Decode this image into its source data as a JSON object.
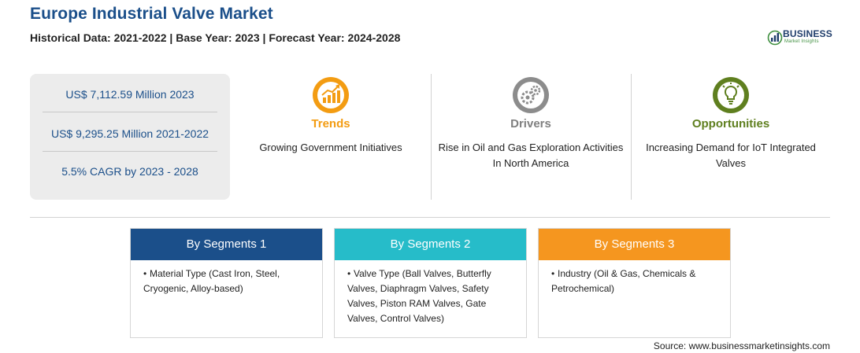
{
  "header": {
    "title": "Europe Industrial Valve Market",
    "subtitle": "Historical Data: 2021-2022 | Base Year: 2023 | Forecast Year: 2024-2028"
  },
  "logo": {
    "name": "BUSINESS",
    "tagline": "Market Insights",
    "colors": {
      "navy": "#1f3d6b",
      "green": "#3f8f3f"
    }
  },
  "stats": [
    "US$ 7,112.59 Million 2023",
    "US$ 9,295.25 Million 2021-2022",
    "5.5% CAGR by 2023 - 2028"
  ],
  "columns": [
    {
      "heading": "Trends",
      "text": "Growing Government Initiatives",
      "icon": "growth-chart-icon",
      "color": "#f39c12"
    },
    {
      "heading": "Drivers",
      "text": "Rise in Oil and Gas Exploration Activities In North America",
      "icon": "gears-icon",
      "color": "#7f7f7f"
    },
    {
      "heading": "Opportunities",
      "text": "Increasing Demand for IoT Integrated Valves",
      "icon": "lightbulb-icon",
      "color": "#5f7f1f"
    }
  ],
  "segments": [
    {
      "title": "By Segments 1",
      "items": [
        "Material Type (Cast Iron, Steel, Cryogenic, Alloy-based)"
      ],
      "color": "#1b4f8a"
    },
    {
      "title": "By Segments 2",
      "items": [
        "Valve Type (Ball Valves, Butterfly Valves, Diaphragm Valves, Safety Valves, Piston RAM Valves, Gate Valves, Control Valves)"
      ],
      "color": "#26bcc9"
    },
    {
      "title": "By Segments 3",
      "items": [
        "Industry (Oil & Gas, Chemicals & Petrochemical)"
      ],
      "color": "#f5961f"
    }
  ],
  "source": "Source: www.businessmarketinsights.com"
}
